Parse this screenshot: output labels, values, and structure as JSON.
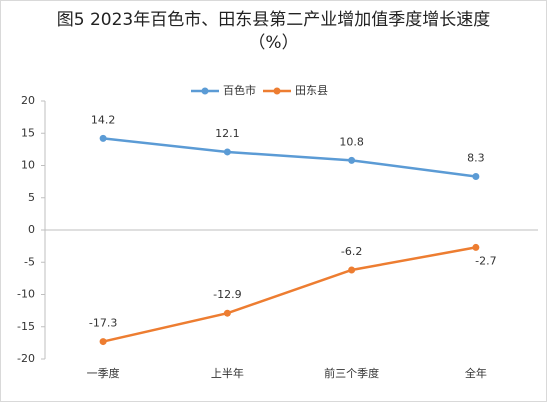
{
  "chart_data": {
    "type": "line",
    "title": "图5 2023年百色市、田东县第二产业增加值季度增长速度（%）",
    "categories": [
      "一季度",
      "上半年",
      "前三个季度",
      "全年"
    ],
    "series": [
      {
        "name": "百色市",
        "color": "#5b9bd5",
        "values": [
          14.2,
          12.1,
          10.8,
          8.3
        ]
      },
      {
        "name": "田东县",
        "color": "#ed7d31",
        "values": [
          -17.3,
          -12.9,
          -6.2,
          -2.7
        ]
      }
    ],
    "ylim": [
      -20,
      20
    ],
    "yticks": [
      -20,
      -15,
      -10,
      -5,
      0,
      5,
      10,
      15,
      20
    ],
    "legend": "top"
  }
}
